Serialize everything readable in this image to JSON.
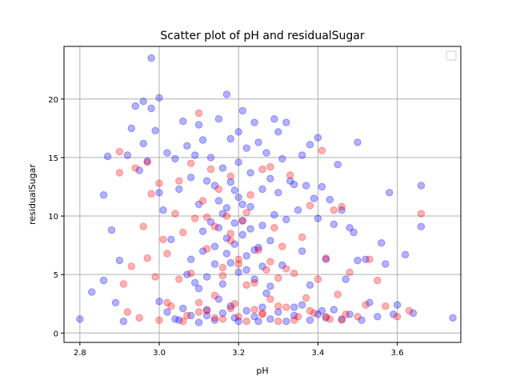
{
  "chart_data": {
    "type": "scatter",
    "title": "Scatter plot of pH and residualSugar",
    "xlabel": "pH",
    "ylabel": "residualSugar",
    "xlim": [
      2.76,
      3.76
    ],
    "ylim": [
      -0.8,
      24.5
    ],
    "xticks": [
      "2.8",
      "3.0",
      "3.2",
      "3.4",
      "3.6"
    ],
    "yticks": [
      "0",
      "5",
      "10",
      "15",
      "20"
    ],
    "grid": true,
    "legend": "top-right, empty",
    "series": [
      {
        "color": "#0000ff",
        "opacity": 0.3,
        "points": [
          [
            2.8,
            1.2
          ],
          [
            2.83,
            3.5
          ],
          [
            2.86,
            4.5
          ],
          [
            2.86,
            11.8
          ],
          [
            2.87,
            15.1
          ],
          [
            2.88,
            8.8
          ],
          [
            2.89,
            2.6
          ],
          [
            2.9,
            6.2
          ],
          [
            2.91,
            1.0
          ],
          [
            2.92,
            15.2
          ],
          [
            2.93,
            17.5
          ],
          [
            2.94,
            19.4
          ],
          [
            2.95,
            13.9
          ],
          [
            2.96,
            16.2
          ],
          [
            2.96,
            19.8
          ],
          [
            2.97,
            14.7
          ],
          [
            2.98,
            23.5
          ],
          [
            2.98,
            19.2
          ],
          [
            2.99,
            17.3
          ],
          [
            3.0,
            20.1
          ],
          [
            3.0,
            12.0
          ],
          [
            3.0,
            2.7
          ],
          [
            3.01,
            10.5
          ],
          [
            3.02,
            15.4
          ],
          [
            3.03,
            8.0
          ],
          [
            3.04,
            14.9
          ],
          [
            3.05,
            12.3
          ],
          [
            3.05,
            1.1
          ],
          [
            3.06,
            18.1
          ],
          [
            3.07,
            16.0
          ],
          [
            3.08,
            13.3
          ],
          [
            3.08,
            6.3
          ],
          [
            3.09,
            15.2
          ],
          [
            3.1,
            17.8
          ],
          [
            3.1,
            11.0
          ],
          [
            3.1,
            3.8
          ],
          [
            3.11,
            16.5
          ],
          [
            3.11,
            8.7
          ],
          [
            3.12,
            13.0
          ],
          [
            3.12,
            1.5
          ],
          [
            3.13,
            15.0
          ],
          [
            3.14,
            12.6
          ],
          [
            3.14,
            7.4
          ],
          [
            3.15,
            18.3
          ],
          [
            3.15,
            2.9
          ],
          [
            3.16,
            14.1
          ],
          [
            3.16,
            10.2
          ],
          [
            3.17,
            20.4
          ],
          [
            3.17,
            6.8
          ],
          [
            3.18,
            16.6
          ],
          [
            3.18,
            12.9
          ],
          [
            3.19,
            9.4
          ],
          [
            3.19,
            1.3
          ],
          [
            3.2,
            17.2
          ],
          [
            3.2,
            14.6
          ],
          [
            3.2,
            11.6
          ],
          [
            3.21,
            19.0
          ],
          [
            3.21,
            8.4
          ],
          [
            3.22,
            15.8
          ],
          [
            3.22,
            5.4
          ],
          [
            3.23,
            13.7
          ],
          [
            3.23,
            10.8
          ],
          [
            3.24,
            18.0
          ],
          [
            3.24,
            7.1
          ],
          [
            3.25,
            16.3
          ],
          [
            3.25,
            1.0
          ],
          [
            3.26,
            12.3
          ],
          [
            3.26,
            9.2
          ],
          [
            3.27,
            15.4
          ],
          [
            3.27,
            3.4
          ],
          [
            3.28,
            13.2
          ],
          [
            3.28,
            7.9
          ],
          [
            3.29,
            18.3
          ],
          [
            3.29,
            10.1
          ],
          [
            3.3,
            17.2
          ],
          [
            3.3,
            12.0
          ],
          [
            3.31,
            14.9
          ],
          [
            3.31,
            5.8
          ],
          [
            3.32,
            18.0
          ],
          [
            3.32,
            9.7
          ],
          [
            3.33,
            13.0
          ],
          [
            3.34,
            12.7
          ],
          [
            3.34,
            2.2
          ],
          [
            3.35,
            10.5
          ],
          [
            3.36,
            15.2
          ],
          [
            3.36,
            7.0
          ],
          [
            3.37,
            12.6
          ],
          [
            3.38,
            16.1
          ],
          [
            3.38,
            4.1
          ],
          [
            3.39,
            11.5
          ],
          [
            3.4,
            16.7
          ],
          [
            3.4,
            9.8
          ],
          [
            3.41,
            12.5
          ],
          [
            3.41,
            1.9
          ],
          [
            3.42,
            6.3
          ],
          [
            3.43,
            11.4
          ],
          [
            3.44,
            9.3
          ],
          [
            3.45,
            14.4
          ],
          [
            3.46,
            10.5
          ],
          [
            3.47,
            4.6
          ],
          [
            3.48,
            9.0
          ],
          [
            3.48,
            1.6
          ],
          [
            3.49,
            8.6
          ],
          [
            3.5,
            16.3
          ],
          [
            3.5,
            6.2
          ],
          [
            3.51,
            1.1
          ],
          [
            3.52,
            6.3
          ],
          [
            3.53,
            2.6
          ],
          [
            3.55,
            1.4
          ],
          [
            3.56,
            7.7
          ],
          [
            3.57,
            5.9
          ],
          [
            3.58,
            12.0
          ],
          [
            3.59,
            1.6
          ],
          [
            3.6,
            2.4
          ],
          [
            3.62,
            6.7
          ],
          [
            3.64,
            1.7
          ],
          [
            3.66,
            12.6
          ],
          [
            3.66,
            9.1
          ],
          [
            3.74,
            1.3
          ],
          [
            3.02,
            1.8
          ],
          [
            3.04,
            1.2
          ],
          [
            3.06,
            2.1
          ],
          [
            3.08,
            1.5
          ],
          [
            3.1,
            0.9
          ],
          [
            3.12,
            2.0
          ],
          [
            3.14,
            1.1
          ],
          [
            3.16,
            1.7
          ],
          [
            3.18,
            2.3
          ],
          [
            3.2,
            1.0
          ],
          [
            3.22,
            1.9
          ],
          [
            3.24,
            1.4
          ],
          [
            3.26,
            2.2
          ],
          [
            3.28,
            1.2
          ],
          [
            3.3,
            1.8
          ],
          [
            3.32,
            1.0
          ],
          [
            3.34,
            1.5
          ],
          [
            3.36,
            2.4
          ],
          [
            3.38,
            1.1
          ],
          [
            3.4,
            1.6
          ],
          [
            3.42,
            1.3
          ],
          [
            3.44,
            2.0
          ],
          [
            3.46,
            1.2
          ],
          [
            3.12,
            4.8
          ],
          [
            3.14,
            5.9
          ],
          [
            3.16,
            4.2
          ],
          [
            3.18,
            6.0
          ],
          [
            3.2,
            5.2
          ],
          [
            3.22,
            6.6
          ],
          [
            3.24,
            4.6
          ],
          [
            3.26,
            5.7
          ],
          [
            3.28,
            4.0
          ],
          [
            3.15,
            9.0
          ],
          [
            3.17,
            8.1
          ],
          [
            3.19,
            7.6
          ],
          [
            3.21,
            9.6
          ],
          [
            3.23,
            8.9
          ],
          [
            3.25,
            7.3
          ],
          [
            3.07,
            5.0
          ],
          [
            3.09,
            4.3
          ],
          [
            3.11,
            7.0
          ],
          [
            3.13,
            9.5
          ],
          [
            3.15,
            11.3
          ],
          [
            3.17,
            10.7
          ],
          [
            3.19,
            12.2
          ],
          [
            3.21,
            11.0
          ]
        ]
      },
      {
        "color": "#ff0000",
        "opacity": 0.3,
        "points": [
          [
            2.9,
            15.5
          ],
          [
            2.9,
            13.7
          ],
          [
            2.91,
            4.2
          ],
          [
            2.92,
            1.8
          ],
          [
            2.93,
            5.7
          ],
          [
            2.94,
            14.1
          ],
          [
            2.95,
            1.3
          ],
          [
            2.96,
            9.1
          ],
          [
            2.97,
            14.6
          ],
          [
            2.97,
            6.4
          ],
          [
            2.98,
            11.9
          ],
          [
            2.99,
            4.8
          ],
          [
            3.0,
            12.8
          ],
          [
            3.0,
            1.1
          ],
          [
            3.01,
            8.0
          ],
          [
            3.02,
            6.8
          ],
          [
            3.03,
            2.3
          ],
          [
            3.04,
            10.2
          ],
          [
            3.05,
            13.0
          ],
          [
            3.05,
            4.6
          ],
          [
            3.06,
            8.6
          ],
          [
            3.07,
            1.5
          ],
          [
            3.08,
            14.5
          ],
          [
            3.08,
            5.1
          ],
          [
            3.09,
            9.8
          ],
          [
            3.1,
            18.8
          ],
          [
            3.1,
            2.6
          ],
          [
            3.11,
            11.3
          ],
          [
            3.12,
            7.2
          ],
          [
            3.12,
            1.9
          ],
          [
            3.13,
            14.0
          ],
          [
            3.14,
            9.1
          ],
          [
            3.14,
            3.2
          ],
          [
            3.15,
            12.3
          ],
          [
            3.16,
            5.6
          ],
          [
            3.16,
            1.2
          ],
          [
            3.17,
            10.0
          ],
          [
            3.18,
            13.4
          ],
          [
            3.18,
            7.9
          ],
          [
            3.19,
            2.5
          ],
          [
            3.2,
            6.3
          ],
          [
            3.2,
            1.4
          ],
          [
            3.21,
            9.6
          ],
          [
            3.22,
            4.1
          ],
          [
            3.23,
            11.8
          ],
          [
            3.24,
            2.0
          ],
          [
            3.25,
            7.1
          ],
          [
            3.26,
            14.0
          ],
          [
            3.26,
            1.6
          ],
          [
            3.27,
            5.4
          ],
          [
            3.28,
            14.2
          ],
          [
            3.28,
            2.9
          ],
          [
            3.29,
            9.0
          ],
          [
            3.3,
            4.7
          ],
          [
            3.3,
            1.0
          ],
          [
            3.31,
            7.4
          ],
          [
            3.32,
            2.2
          ],
          [
            3.33,
            13.5
          ],
          [
            3.34,
            5.1
          ],
          [
            3.35,
            1.4
          ],
          [
            3.36,
            8.2
          ],
          [
            3.37,
            3.0
          ],
          [
            3.38,
            10.9
          ],
          [
            3.39,
            1.7
          ],
          [
            3.4,
            4.6
          ],
          [
            3.41,
            15.6
          ],
          [
            3.42,
            6.4
          ],
          [
            3.43,
            1.2
          ],
          [
            3.44,
            10.5
          ],
          [
            3.45,
            3.3
          ],
          [
            3.46,
            10.8
          ],
          [
            3.47,
            1.6
          ],
          [
            3.48,
            5.2
          ],
          [
            3.5,
            1.4
          ],
          [
            3.52,
            2.4
          ],
          [
            3.53,
            6.3
          ],
          [
            3.55,
            4.5
          ],
          [
            3.57,
            2.3
          ],
          [
            3.6,
            1.4
          ],
          [
            3.63,
            1.9
          ],
          [
            3.66,
            10.2
          ],
          [
            3.02,
            2.6
          ],
          [
            3.06,
            1.0
          ],
          [
            3.1,
            1.8
          ],
          [
            3.14,
            1.3
          ],
          [
            3.18,
            2.1
          ],
          [
            3.22,
            1.0
          ],
          [
            3.26,
            1.7
          ],
          [
            3.3,
            2.3
          ],
          [
            3.34,
            1.1
          ],
          [
            3.38,
            1.9
          ],
          [
            3.42,
            1.4
          ],
          [
            3.46,
            1.1
          ],
          [
            3.16,
            4.9
          ],
          [
            3.2,
            5.9
          ],
          [
            3.24,
            4.3
          ],
          [
            3.28,
            6.1
          ],
          [
            3.32,
            5.5
          ],
          [
            3.12,
            9.9
          ],
          [
            3.18,
            8.5
          ],
          [
            3.22,
            10.3
          ]
        ]
      }
    ]
  }
}
